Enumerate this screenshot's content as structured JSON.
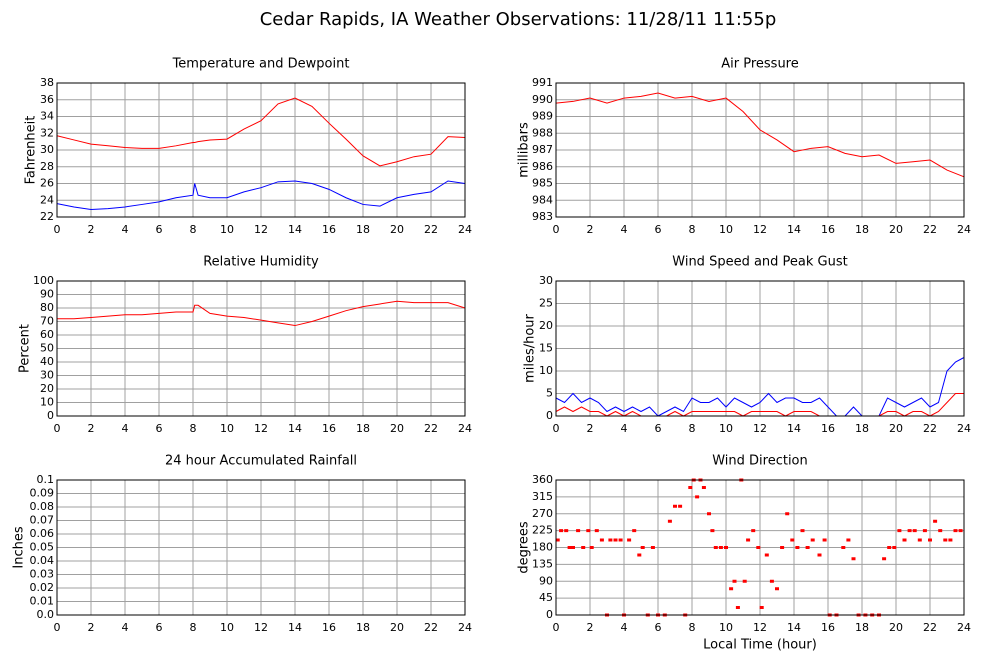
{
  "title": "Cedar Rapids, IA Weather Observations: 11/28/11 11:55p",
  "chart_data": [
    {
      "type": "line",
      "title": "Temperature and Dewpoint",
      "ylabel": "Fahrenheit",
      "x": [
        0,
        1,
        2,
        3,
        4,
        5,
        6,
        7,
        8,
        8.1,
        8.3,
        9,
        10,
        11,
        12,
        13,
        14,
        15,
        16,
        17,
        18,
        19,
        20,
        21,
        22,
        23,
        24
      ],
      "series": [
        {
          "color": "#ff0000",
          "values": [
            31.7,
            31.2,
            30.7,
            30.5,
            30.3,
            30.2,
            30.2,
            30.5,
            30.9,
            30.9,
            31.0,
            31.2,
            31.3,
            32.5,
            33.5,
            35.5,
            36.2,
            35.2,
            33.2,
            31.3,
            29.3,
            28.1,
            28.6,
            29.2,
            29.5,
            31.6,
            31.5
          ]
        },
        {
          "color": "#0000ff",
          "values": [
            23.6,
            23.2,
            22.9,
            23.0,
            23.2,
            23.5,
            23.8,
            24.3,
            24.6,
            26.0,
            24.6,
            24.3,
            24.3,
            25.0,
            25.5,
            26.2,
            26.3,
            26.0,
            25.3,
            24.3,
            23.5,
            23.3,
            24.3,
            24.7,
            25.0,
            26.3,
            26.0
          ]
        }
      ],
      "xlim": [
        0,
        24
      ],
      "xticks": [
        0,
        2,
        4,
        6,
        8,
        10,
        12,
        14,
        16,
        18,
        20,
        22,
        24
      ],
      "ylim": [
        22,
        38
      ],
      "yticks": [
        22,
        24,
        26,
        28,
        30,
        32,
        34,
        36,
        38
      ],
      "grid": true
    },
    {
      "type": "line",
      "title": "Air Pressure",
      "ylabel": "millibars",
      "x": [
        0,
        1,
        2,
        3,
        4,
        5,
        6,
        7,
        8,
        9,
        10,
        11,
        12,
        13,
        14,
        15,
        16,
        17,
        18,
        19,
        20,
        21,
        22,
        23,
        24
      ],
      "series": [
        {
          "color": "#ff0000",
          "values": [
            989.8,
            989.9,
            990.1,
            989.8,
            990.1,
            990.2,
            990.4,
            990.1,
            990.2,
            989.9,
            990.1,
            989.3,
            988.2,
            987.6,
            986.9,
            987.1,
            987.2,
            986.8,
            986.6,
            986.7,
            986.2,
            986.3,
            986.4,
            985.8,
            985.4
          ]
        }
      ],
      "xlim": [
        0,
        24
      ],
      "xticks": [
        0,
        2,
        4,
        6,
        8,
        10,
        12,
        14,
        16,
        18,
        20,
        22,
        24
      ],
      "ylim": [
        983,
        991
      ],
      "yticks": [
        983,
        984,
        985,
        986,
        987,
        988,
        989,
        990,
        991
      ],
      "grid": true
    },
    {
      "type": "line",
      "title": "Relative Humidity",
      "ylabel": "Percent",
      "x": [
        0,
        1,
        2,
        3,
        4,
        5,
        6,
        7,
        8,
        8.1,
        8.3,
        9,
        10,
        11,
        12,
        13,
        14,
        15,
        16,
        17,
        18,
        19,
        20,
        21,
        22,
        23,
        24
      ],
      "series": [
        {
          "color": "#ff0000",
          "values": [
            72,
            72,
            73,
            74,
            75,
            75,
            76,
            77,
            77,
            82,
            82,
            76,
            74,
            73,
            71,
            69,
            67,
            70,
            74,
            78,
            81,
            83,
            85,
            84,
            84,
            84,
            80
          ]
        }
      ],
      "xlim": [
        0,
        24
      ],
      "xticks": [
        0,
        2,
        4,
        6,
        8,
        10,
        12,
        14,
        16,
        18,
        20,
        22,
        24
      ],
      "ylim": [
        0,
        100
      ],
      "yticks": [
        0,
        10,
        20,
        30,
        40,
        50,
        60,
        70,
        80,
        90,
        100
      ],
      "grid": true
    },
    {
      "type": "line",
      "title": "Wind Speed and Peak Gust",
      "ylabel": "miles/hour",
      "x": [
        0,
        0.5,
        1,
        1.5,
        2,
        2.5,
        3,
        3.5,
        4,
        4.5,
        5,
        5.5,
        6,
        6.5,
        7,
        7.5,
        8,
        8.5,
        9,
        9.5,
        10,
        10.5,
        11,
        11.5,
        12,
        12.5,
        13,
        13.5,
        14,
        14.5,
        15,
        15.5,
        16,
        16.5,
        17,
        17.5,
        18,
        18.5,
        19,
        19.5,
        20,
        20.5,
        21,
        21.5,
        22,
        22.5,
        23,
        23.5,
        24
      ],
      "series": [
        {
          "color": "#0000ff",
          "values": [
            4,
            3,
            5,
            3,
            4,
            3,
            1,
            2,
            1,
            2,
            1,
            2,
            0,
            1,
            2,
            1,
            4,
            3,
            3,
            4,
            2,
            4,
            3,
            2,
            3,
            5,
            3,
            4,
            4,
            3,
            3,
            4,
            2,
            0,
            0,
            2,
            0,
            0,
            0,
            4,
            3,
            2,
            3,
            4,
            2,
            3,
            10,
            12,
            13
          ]
        },
        {
          "color": "#ff0000",
          "values": [
            1,
            2,
            1,
            2,
            1,
            1,
            0,
            1,
            0,
            1,
            0,
            0,
            0,
            0,
            1,
            0,
            1,
            1,
            1,
            1,
            1,
            1,
            0,
            1,
            1,
            1,
            1,
            0,
            1,
            1,
            1,
            0,
            0,
            0,
            0,
            0,
            0,
            0,
            0,
            1,
            1,
            0,
            1,
            1,
            0,
            1,
            3,
            5,
            5
          ]
        }
      ],
      "xlim": [
        0,
        24
      ],
      "xticks": [
        0,
        2,
        4,
        6,
        8,
        10,
        12,
        14,
        16,
        18,
        20,
        22,
        24
      ],
      "ylim": [
        0,
        30
      ],
      "yticks": [
        0,
        5,
        10,
        15,
        20,
        25,
        30
      ],
      "grid": true
    },
    {
      "type": "line",
      "title": "24 hour Accumulated Rainfall",
      "ylabel": "Inches",
      "x": [
        0,
        24
      ],
      "series": [
        {
          "color": "#e0507a",
          "values": [
            0,
            0
          ]
        }
      ],
      "xlim": [
        0,
        24
      ],
      "xticks": [
        0,
        2,
        4,
        6,
        8,
        10,
        12,
        14,
        16,
        18,
        20,
        22,
        24
      ],
      "ylim": [
        0,
        0.1
      ],
      "yticks": [
        {
          "value": 0,
          "label": "0.0"
        },
        0.01,
        0.02,
        0.03,
        0.04,
        0.05,
        0.06,
        0.07,
        0.08,
        0.09,
        0.1
      ],
      "grid": true
    },
    {
      "type": "scatter",
      "title": "Wind Direction",
      "ylabel": "degrees",
      "xlabel": "Local Time (hour)",
      "color": "#ff0000",
      "x": [
        0.1,
        0.3,
        0.6,
        0.8,
        1.0,
        1.3,
        1.6,
        1.9,
        2.1,
        2.4,
        2.7,
        3.0,
        3.2,
        3.5,
        3.8,
        4.0,
        4.3,
        4.6,
        4.9,
        5.1,
        5.4,
        5.7,
        6.0,
        6.4,
        6.7,
        7.0,
        7.3,
        7.6,
        7.9,
        8.1,
        8.3,
        8.5,
        8.7,
        9.0,
        9.2,
        9.4,
        9.7,
        10.0,
        10.3,
        10.5,
        10.7,
        10.9,
        11.1,
        11.3,
        11.6,
        11.9,
        12.1,
        12.4,
        12.7,
        13.0,
        13.3,
        13.6,
        13.9,
        14.2,
        14.5,
        14.8,
        15.1,
        15.5,
        15.8,
        16.1,
        16.5,
        16.9,
        17.2,
        17.5,
        17.8,
        18.2,
        18.6,
        19.0,
        19.3,
        19.6,
        19.9,
        20.2,
        20.5,
        20.8,
        21.1,
        21.4,
        21.7,
        22.0,
        22.3,
        22.6,
        22.9,
        23.2,
        23.5,
        23.8
      ],
      "values": [
        200,
        225,
        225,
        180,
        180,
        225,
        180,
        225,
        180,
        225,
        200,
        0,
        200,
        200,
        200,
        0,
        200,
        225,
        160,
        180,
        0,
        180,
        0,
        0,
        250,
        290,
        290,
        0,
        340,
        360,
        315,
        360,
        340,
        270,
        225,
        180,
        180,
        180,
        70,
        90,
        20,
        360,
        90,
        200,
        225,
        180,
        20,
        160,
        90,
        70,
        180,
        270,
        200,
        180,
        225,
        180,
        200,
        160,
        200,
        0,
        0,
        180,
        200,
        150,
        0,
        0,
        0,
        0,
        150,
        180,
        180,
        225,
        200,
        225,
        225,
        200,
        225,
        200,
        250,
        225,
        200,
        200,
        225,
        225
      ],
      "xlim": [
        0,
        24
      ],
      "xticks": [
        0,
        2,
        4,
        6,
        8,
        10,
        12,
        14,
        16,
        18,
        20,
        22,
        24
      ],
      "ylim": [
        0,
        360
      ],
      "yticks": [
        0,
        45,
        90,
        135,
        180,
        225,
        270,
        315,
        360
      ],
      "grid": true
    }
  ]
}
